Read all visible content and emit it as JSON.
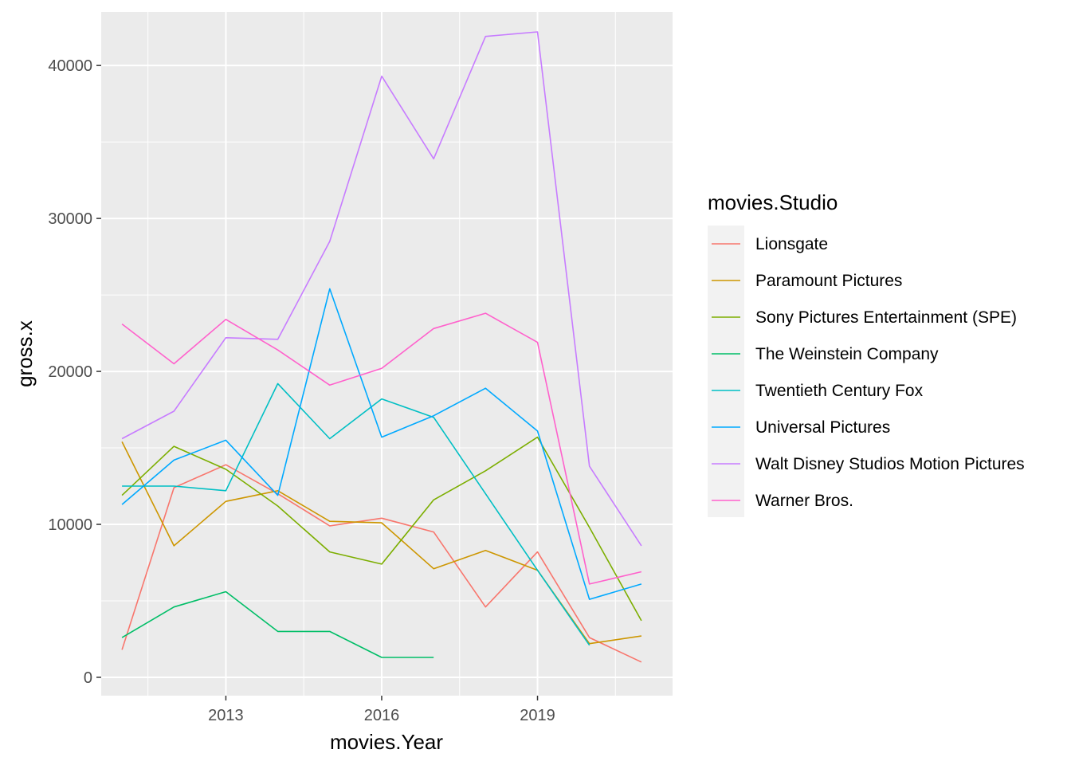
{
  "chart_data": {
    "type": "line",
    "xlabel": "movies.Year",
    "ylabel": "gross.x",
    "xlim": [
      2010.6,
      2021.6
    ],
    "ylim": [
      -1200,
      43500
    ],
    "x_ticks": [
      2013,
      2016,
      2019
    ],
    "x_minor": [
      2011.5,
      2014.5,
      2017.5,
      2020.5
    ],
    "y_ticks": [
      0,
      10000,
      20000,
      30000,
      40000
    ],
    "y_minor": [
      5000,
      15000,
      25000,
      35000
    ],
    "grid": true,
    "legend": {
      "title": "movies.Studio",
      "position": "right"
    },
    "series": [
      {
        "name": "Lionsgate",
        "color": "#F8766D",
        "points": [
          [
            2011,
            1800
          ],
          [
            2012,
            12400
          ],
          [
            2013,
            13900
          ],
          [
            2014,
            12000
          ],
          [
            2015,
            9900
          ],
          [
            2016,
            10400
          ],
          [
            2017,
            9500
          ],
          [
            2018,
            4600
          ],
          [
            2019,
            8200
          ],
          [
            2020,
            2600
          ],
          [
            2021,
            1000
          ]
        ]
      },
      {
        "name": "Paramount Pictures",
        "color": "#CD9600",
        "points": [
          [
            2011,
            15400
          ],
          [
            2012,
            8600
          ],
          [
            2013,
            11500
          ],
          [
            2014,
            12200
          ],
          [
            2015,
            10200
          ],
          [
            2016,
            10100
          ],
          [
            2017,
            7100
          ],
          [
            2018,
            8300
          ],
          [
            2019,
            7000
          ],
          [
            2020,
            2200
          ],
          [
            2021,
            2700
          ]
        ]
      },
      {
        "name": "Sony Pictures Entertainment (SPE)",
        "color": "#7CAE00",
        "points": [
          [
            2011,
            11900
          ],
          [
            2012,
            15100
          ],
          [
            2013,
            13600
          ],
          [
            2014,
            11200
          ],
          [
            2015,
            8200
          ],
          [
            2016,
            7400
          ],
          [
            2017,
            11600
          ],
          [
            2018,
            13500
          ],
          [
            2019,
            15700
          ],
          [
            2020,
            9800
          ],
          [
            2021,
            3700
          ]
        ]
      },
      {
        "name": "The Weinstein Company",
        "color": "#00BE67",
        "points": [
          [
            2011,
            2600
          ],
          [
            2012,
            4600
          ],
          [
            2013,
            5600
          ],
          [
            2014,
            3000
          ],
          [
            2015,
            3000
          ],
          [
            2016,
            1300
          ],
          [
            2017,
            1300
          ]
        ]
      },
      {
        "name": "Twentieth Century Fox",
        "color": "#00BFC4",
        "points": [
          [
            2011,
            12500
          ],
          [
            2012,
            12500
          ],
          [
            2013,
            12200
          ],
          [
            2014,
            19200
          ],
          [
            2015,
            15600
          ],
          [
            2016,
            18200
          ],
          [
            2017,
            17000
          ],
          [
            2018,
            12000
          ],
          [
            2019,
            7000
          ],
          [
            2020,
            2100
          ]
        ]
      },
      {
        "name": "Universal Pictures",
        "color": "#00A9FF",
        "points": [
          [
            2011,
            11300
          ],
          [
            2012,
            14200
          ],
          [
            2013,
            15500
          ],
          [
            2014,
            11900
          ],
          [
            2015,
            25400
          ],
          [
            2016,
            15700
          ],
          [
            2017,
            17100
          ],
          [
            2018,
            18900
          ],
          [
            2019,
            16100
          ],
          [
            2020,
            5100
          ],
          [
            2021,
            6100
          ]
        ]
      },
      {
        "name": "Walt Disney Studios Motion Pictures",
        "color": "#C77CFF",
        "points": [
          [
            2011,
            15600
          ],
          [
            2012,
            17400
          ],
          [
            2013,
            22200
          ],
          [
            2014,
            22100
          ],
          [
            2015,
            28500
          ],
          [
            2016,
            39300
          ],
          [
            2017,
            33900
          ],
          [
            2018,
            41900
          ],
          [
            2019,
            42200
          ],
          [
            2020,
            13800
          ],
          [
            2021,
            8600
          ]
        ]
      },
      {
        "name": "Warner Bros.",
        "color": "#FF61CC",
        "points": [
          [
            2011,
            23100
          ],
          [
            2012,
            20500
          ],
          [
            2013,
            23400
          ],
          [
            2014,
            21400
          ],
          [
            2015,
            19100
          ],
          [
            2016,
            20200
          ],
          [
            2017,
            22800
          ],
          [
            2018,
            23800
          ],
          [
            2019,
            21900
          ],
          [
            2020,
            6100
          ],
          [
            2021,
            6900
          ]
        ]
      }
    ]
  }
}
